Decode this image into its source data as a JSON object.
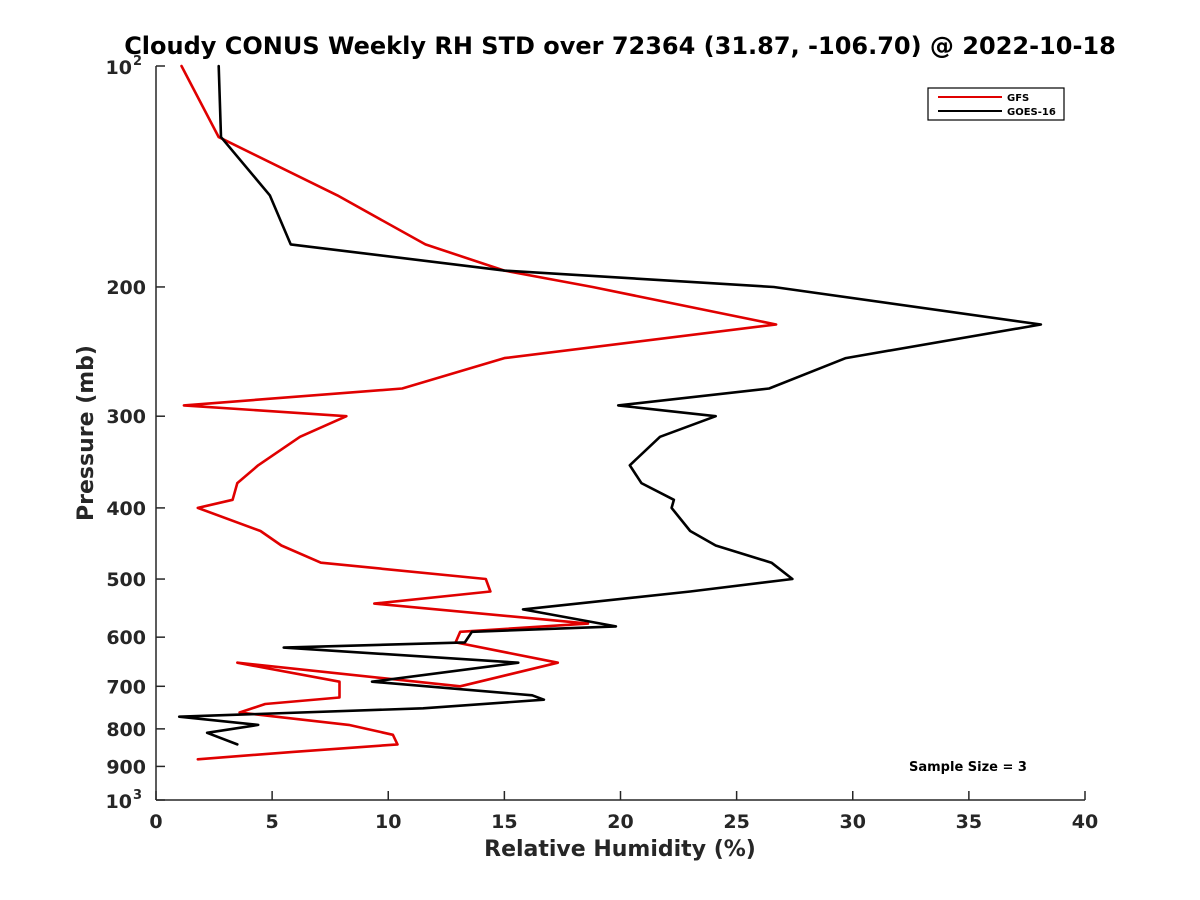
{
  "chart_data": {
    "type": "line",
    "title": "Cloudy CONUS Weekly RH STD over 72364 (31.87, -106.70) @ 2022-10-18",
    "xlabel": "Relative Humidity (%)",
    "ylabel": "Pressure (mb)",
    "xlim": [
      0,
      40
    ],
    "ylim": [
      100,
      1000
    ],
    "y_scale": "log",
    "y_reversed": true,
    "x_ticks": [
      "0",
      "5",
      "10",
      "15",
      "20",
      "25",
      "30",
      "35",
      "40"
    ],
    "y_ticks": [
      {
        "value": 100,
        "base": "10",
        "exp": "2"
      },
      {
        "value": 200,
        "label": "200"
      },
      {
        "value": 300,
        "label": "300"
      },
      {
        "value": 400,
        "label": "400"
      },
      {
        "value": 500,
        "label": "500"
      },
      {
        "value": 600,
        "label": "600"
      },
      {
        "value": 700,
        "label": "700"
      },
      {
        "value": 800,
        "label": "800"
      },
      {
        "value": 900,
        "label": "900"
      },
      {
        "value": 1000,
        "base": "10",
        "exp": "3"
      }
    ],
    "legend_position": "top-right",
    "grid": false,
    "annotation": "Sample Size = 3",
    "series": [
      {
        "name": "GFS",
        "color": "#e00000",
        "points": [
          [
            1.1,
            100
          ],
          [
            2.7,
            125
          ],
          [
            7.8,
            150
          ],
          [
            11.6,
            175
          ],
          [
            15.0,
            190
          ],
          [
            18.8,
            200
          ],
          [
            26.7,
            225
          ],
          [
            15.0,
            250
          ],
          [
            10.6,
            275
          ],
          [
            1.2,
            290
          ],
          [
            8.2,
            300
          ],
          [
            6.2,
            320
          ],
          [
            4.4,
            350
          ],
          [
            3.5,
            370
          ],
          [
            3.3,
            390
          ],
          [
            1.8,
            400
          ],
          [
            4.5,
            430
          ],
          [
            5.4,
            450
          ],
          [
            7.1,
            475
          ],
          [
            14.2,
            500
          ],
          [
            14.4,
            520
          ],
          [
            9.4,
            540
          ],
          [
            18.6,
            575
          ],
          [
            13.1,
            590
          ],
          [
            12.9,
            610
          ],
          [
            17.3,
            650
          ],
          [
            13.1,
            700
          ],
          [
            3.5,
            650
          ],
          [
            7.9,
            690
          ],
          [
            7.9,
            725
          ],
          [
            4.7,
            740
          ],
          [
            3.6,
            760
          ],
          [
            8.3,
            790
          ],
          [
            10.2,
            815
          ],
          [
            10.4,
            840
          ],
          [
            5.9,
            860
          ],
          [
            1.8,
            880
          ]
        ]
      },
      {
        "name": "GOES-16",
        "color": "#000000",
        "points": [
          [
            2.7,
            100
          ],
          [
            2.8,
            125
          ],
          [
            4.9,
            150
          ],
          [
            5.8,
            175
          ],
          [
            15.0,
            190
          ],
          [
            26.6,
            200
          ],
          [
            38.1,
            225
          ],
          [
            29.7,
            250
          ],
          [
            26.4,
            275
          ],
          [
            19.9,
            290
          ],
          [
            24.1,
            300
          ],
          [
            21.7,
            320
          ],
          [
            20.4,
            350
          ],
          [
            20.9,
            370
          ],
          [
            22.3,
            390
          ],
          [
            22.2,
            400
          ],
          [
            23.0,
            430
          ],
          [
            24.1,
            450
          ],
          [
            26.5,
            475
          ],
          [
            27.4,
            500
          ],
          [
            23.0,
            520
          ],
          [
            15.8,
            550
          ],
          [
            19.8,
            580
          ],
          [
            13.6,
            590
          ],
          [
            13.3,
            610
          ],
          [
            5.5,
            620
          ],
          [
            15.6,
            650
          ],
          [
            9.3,
            690
          ],
          [
            16.2,
            720
          ],
          [
            16.7,
            730
          ],
          [
            11.5,
            750
          ],
          [
            1.0,
            770
          ],
          [
            4.4,
            790
          ],
          [
            2.2,
            810
          ],
          [
            3.5,
            840
          ]
        ]
      }
    ]
  }
}
